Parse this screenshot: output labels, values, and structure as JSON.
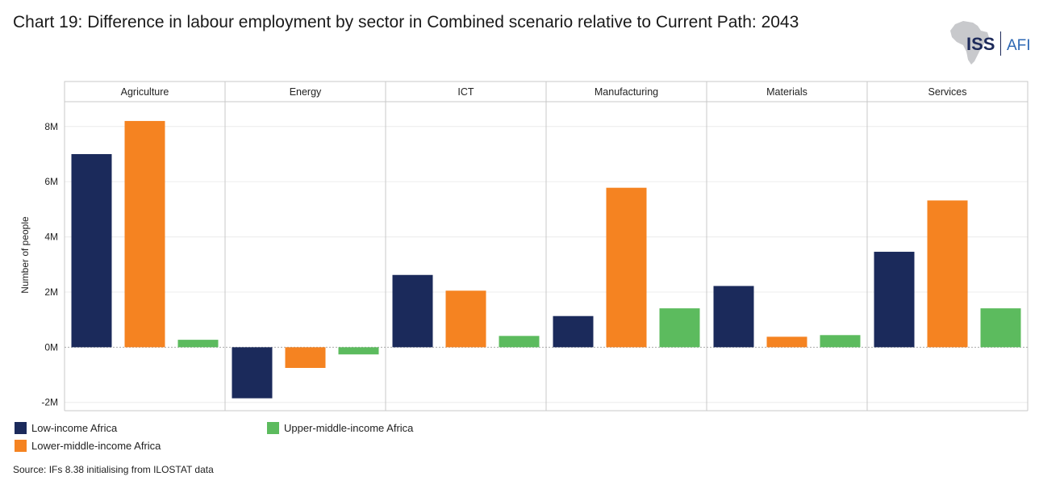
{
  "title": "Chart 19: Difference in labour employment by sector in Combined scenario relative to Current Path: 2043",
  "logo": {
    "text": "ISS",
    "sub": "AFI",
    "icon": "africa-map-icon"
  },
  "source": "Source: IFs 8.38 initialising from ILOSTAT data",
  "chart_data": {
    "type": "bar",
    "layout": "faceted",
    "title": "Chart 19: Difference in labour employment by sector in Combined scenario relative to Current Path: 2043",
    "ylabel": "Number of people",
    "xlabel": "",
    "ylim": [
      -2300000,
      8900000
    ],
    "yticks": [
      -2000000,
      0,
      2000000,
      4000000,
      6000000,
      8000000
    ],
    "ytick_labels": [
      "-2M",
      "0M",
      "2M",
      "4M",
      "6M",
      "8M"
    ],
    "grid": true,
    "legend_position": "bottom-left",
    "categories": [
      "Agriculture",
      "Energy",
      "ICT",
      "Manufacturing",
      "Materials",
      "Services"
    ],
    "series": [
      {
        "name": "Low-income Africa",
        "color": "#1b2a5b",
        "values": [
          7000000,
          -1850000,
          2620000,
          1130000,
          2220000,
          3460000
        ]
      },
      {
        "name": "Lower-middle-income Africa",
        "color": "#f58321",
        "values": [
          8200000,
          -750000,
          2050000,
          5780000,
          380000,
          5320000
        ]
      },
      {
        "name": "Upper-middle-income Africa",
        "color": "#5cbb5e",
        "values": [
          270000,
          -260000,
          410000,
          1410000,
          440000,
          1410000
        ]
      }
    ]
  }
}
